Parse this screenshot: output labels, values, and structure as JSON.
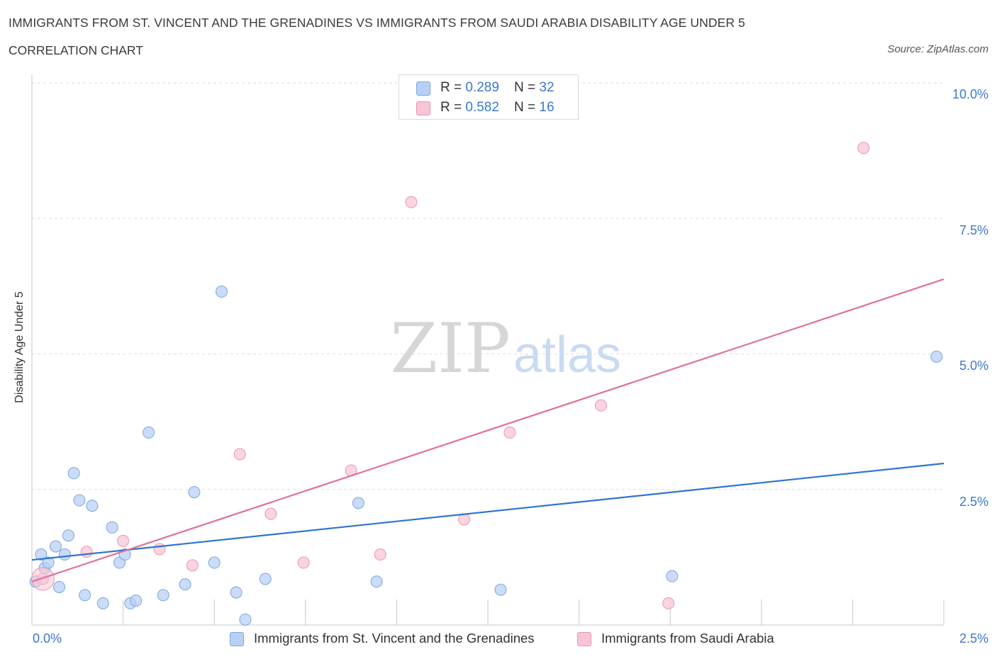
{
  "title": "IMMIGRANTS FROM ST. VINCENT AND THE GRENADINES VS IMMIGRANTS FROM SAUDI ARABIA DISABILITY AGE UNDER 5",
  "subtitle": "CORRELATION CHART",
  "source": "Source: ZipAtlas.com",
  "watermark": {
    "zip": "ZIP",
    "atlas": "atlas"
  },
  "legend": {
    "rows": [
      {
        "r_label": "R = ",
        "r_value": "0.289",
        "n_label": "N = ",
        "n_value": "32"
      },
      {
        "r_label": "R = ",
        "r_value": "0.582",
        "n_label": "N = ",
        "n_value": "16"
      }
    ]
  },
  "colors": {
    "blue_fill": "#b8d0f4",
    "blue_stroke": "#7aa6e0",
    "blue_line": "#2f74d0",
    "pink_fill": "#f8c5d4",
    "pink_stroke": "#ec94ae",
    "pink_line": "#e2709a",
    "grid": "#dddddd",
    "axis": "#c8c8c8",
    "tick_text": "#3b78d0"
  },
  "chart_data": {
    "type": "scatter",
    "title": "IMMIGRANTS FROM ST. VINCENT AND THE GRENADINES VS IMMIGRANTS FROM SAUDI ARABIA DISABILITY AGE UNDER 5",
    "xlabel": "",
    "ylabel": "Disability Age Under 5",
    "xlim": [
      0,
      2.5
    ],
    "ylim": [
      0,
      10
    ],
    "x_tick_labels": [
      "0.0%",
      "2.5%"
    ],
    "y_ticks": [
      2.5,
      5.0,
      7.5,
      10.0
    ],
    "y_tick_labels": [
      "2.5%",
      "5.0%",
      "7.5%",
      "10.0%"
    ],
    "grid": true,
    "series": [
      {
        "name": "Immigrants from St. Vincent and the Grenadines",
        "color": "#7aa6e0",
        "points": [
          [
            0.01,
            0.8
          ],
          [
            0.025,
            1.3
          ],
          [
            0.035,
            1.05
          ],
          [
            0.045,
            1.15
          ],
          [
            0.065,
            1.45
          ],
          [
            0.075,
            0.7
          ],
          [
            0.09,
            1.3
          ],
          [
            0.1,
            1.65
          ],
          [
            0.115,
            2.8
          ],
          [
            0.13,
            2.3
          ],
          [
            0.145,
            0.55
          ],
          [
            0.165,
            2.2
          ],
          [
            0.195,
            0.4
          ],
          [
            0.22,
            1.8
          ],
          [
            0.24,
            1.15
          ],
          [
            0.255,
            1.3
          ],
          [
            0.27,
            0.4
          ],
          [
            0.285,
            0.45
          ],
          [
            0.32,
            3.55
          ],
          [
            0.36,
            0.55
          ],
          [
            0.42,
            0.75
          ],
          [
            0.445,
            2.45
          ],
          [
            0.5,
            1.15
          ],
          [
            0.52,
            6.15
          ],
          [
            0.56,
            0.6
          ],
          [
            0.585,
            0.1
          ],
          [
            0.64,
            0.85
          ],
          [
            0.895,
            2.25
          ],
          [
            0.945,
            0.8
          ],
          [
            1.285,
            0.65
          ],
          [
            1.755,
            0.9
          ],
          [
            2.48,
            4.95
          ]
        ],
        "trend": [
          [
            0,
            1.2
          ],
          [
            2.5,
            2.98
          ]
        ]
      },
      {
        "name": "Immigrants from Saudi Arabia",
        "color": "#ec94ae",
        "points": [
          [
            0.03,
            0.85
          ],
          [
            0.15,
            1.35
          ],
          [
            0.25,
            1.55
          ],
          [
            0.35,
            1.4
          ],
          [
            0.44,
            1.1
          ],
          [
            0.57,
            3.15
          ],
          [
            0.655,
            2.05
          ],
          [
            0.745,
            1.15
          ],
          [
            0.875,
            2.85
          ],
          [
            0.955,
            1.3
          ],
          [
            1.04,
            7.8
          ],
          [
            1.185,
            1.95
          ],
          [
            1.31,
            3.55
          ],
          [
            1.56,
            4.05
          ],
          [
            1.745,
            0.4
          ],
          [
            2.28,
            8.8
          ]
        ],
        "trend": [
          [
            0,
            0.8
          ],
          [
            2.5,
            6.38
          ]
        ]
      }
    ]
  }
}
